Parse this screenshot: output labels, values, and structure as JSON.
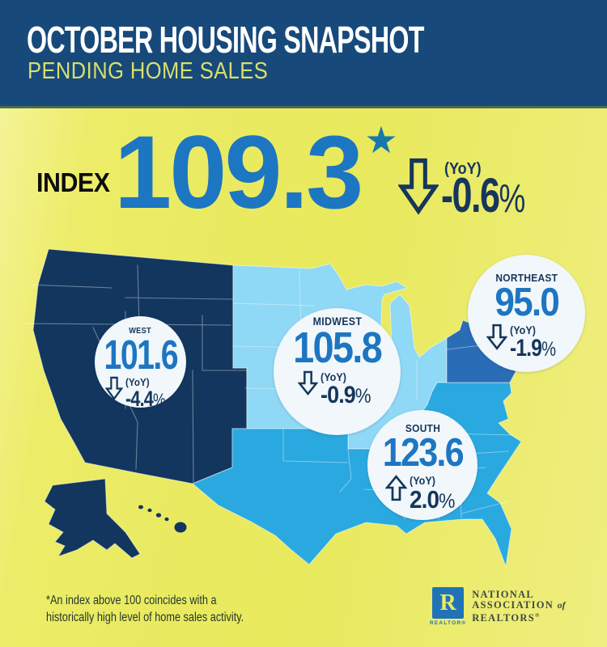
{
  "header": {
    "title": "OCTOBER HOUSING SNAPSHOT",
    "subtitle": "PENDING HOME SALES"
  },
  "index": {
    "label": "INDEX",
    "value": "109.3",
    "footnote_marker": "★",
    "yoy_label": "(YoY)",
    "change": "-0.6",
    "suffix": "%",
    "direction": "down"
  },
  "regions": [
    {
      "name": "WEST",
      "value": "101.6",
      "yoy_label": "(YoY)",
      "change": "-4.4",
      "suffix": "%",
      "direction": "down"
    },
    {
      "name": "MIDWEST",
      "value": "105.8",
      "yoy_label": "(YoY)",
      "change": "-0.9",
      "suffix": "%",
      "direction": "down"
    },
    {
      "name": "NORTHEAST",
      "value": "95.0",
      "yoy_label": "(YoY)",
      "change": "-1.9",
      "suffix": "%",
      "direction": "down"
    },
    {
      "name": "SOUTH",
      "value": "123.6",
      "yoy_label": "(YoY)",
      "change": "2.0",
      "suffix": "%",
      "direction": "up"
    }
  ],
  "footnote": {
    "line1": "*An index above 100 coincides with a",
    "line2": "historically high level of home sales activity."
  },
  "logo": {
    "r_glyph": "R",
    "realtor": "REALTOR®",
    "line1": "NATIONAL",
    "line2": "ASSOCIATION",
    "line2_of": "of",
    "line3": "REALTORS",
    "reg_mark": "®"
  },
  "colors": {
    "header_bg": "#17497b",
    "title": "#ffffff",
    "subtitle": "#d9df6b",
    "body_yellow": "#e9e95e",
    "accent_blue": "#1d76c1",
    "navy_text": "#16365c",
    "region_west": "#12365e",
    "region_midwest": "#8fd8f6",
    "region_south": "#2aa9e0",
    "region_northeast": "#2a6db6",
    "badge_bg": "#f1f7fa",
    "logo_blue": "#2173b8",
    "footnote_text": "#24382e"
  },
  "chart_data": {
    "type": "heatmap",
    "subtype": "us-choropleth-regions",
    "title": "October Housing Snapshot — Pending Home Sales",
    "national_index": {
      "value": 109.3,
      "yoy_change_pct": -0.6
    },
    "categories": [
      "West",
      "Midwest",
      "Northeast",
      "South"
    ],
    "series": [
      {
        "name": "Pending Home Sales Index",
        "values": [
          101.6,
          105.8,
          95.0,
          123.6
        ]
      },
      {
        "name": "YoY change (%)",
        "values": [
          -4.4,
          -0.9,
          -1.9,
          2.0
        ]
      }
    ],
    "legend_position": "none",
    "note": "*An index above 100 coincides with a historically high level of home sales activity."
  }
}
